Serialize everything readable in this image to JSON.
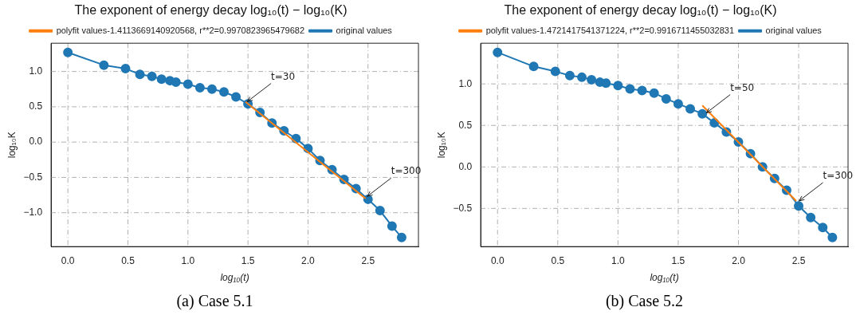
{
  "chart_data": [
    {
      "type": "line",
      "title": "The exponent of energy decay log₁₀(t) − log₁₀(K)",
      "xlabel": "log₁₀(t)",
      "ylabel": "log₁₀K",
      "xlim": [
        -0.14,
        2.92
      ],
      "ylim": [
        -1.48,
        1.4
      ],
      "xticks": [
        {
          "value": 0,
          "label": "0.0"
        },
        {
          "value": 0.5,
          "label": "0.5"
        },
        {
          "value": 1,
          "label": "1.0"
        },
        {
          "value": 1.5,
          "label": "1.5"
        },
        {
          "value": 2,
          "label": "2.0"
        },
        {
          "value": 2.5,
          "label": "2.5"
        }
      ],
      "yticks": [
        {
          "value": -1,
          "label": "−1.0"
        },
        {
          "value": -0.5,
          "label": "−0.5"
        },
        {
          "value": 0,
          "label": "0.0"
        },
        {
          "value": 0.5,
          "label": "0.5"
        },
        {
          "value": 1,
          "label": "1.0"
        }
      ],
      "grid": true,
      "legend": "top",
      "series": [
        {
          "name": "original values",
          "color": "#1f77b4",
          "marker": "circle",
          "x": [
            0,
            0.3,
            0.48,
            0.6,
            0.7,
            0.78,
            0.85,
            0.9,
            1.0,
            1.1,
            1.2,
            1.3,
            1.4,
            1.5,
            1.6,
            1.7,
            1.8,
            1.9,
            2.0,
            2.1,
            2.2,
            2.3,
            2.4,
            2.5,
            2.6,
            2.7,
            2.78
          ],
          "values": [
            1.27,
            1.09,
            1.04,
            0.96,
            0.93,
            0.89,
            0.87,
            0.85,
            0.82,
            0.77,
            0.75,
            0.71,
            0.64,
            0.54,
            0.42,
            0.27,
            0.16,
            0.05,
            -0.09,
            -0.26,
            -0.39,
            -0.53,
            -0.66,
            -0.81,
            -0.97,
            -1.19,
            -1.35
          ]
        },
        {
          "name": "polyfit values-1.4113669140920568, r**2=0.9970823965479682",
          "color": "#ff7f0e",
          "marker": "none",
          "x": [
            1.48,
            2.48
          ],
          "values": [
            0.57,
            -0.8
          ]
        }
      ],
      "annotations": [
        {
          "text": "t=30",
          "x": 1.48,
          "y": 0.56
        },
        {
          "text": "t=300",
          "x": 2.48,
          "y": -0.78
        },
        "(a) Case 5.1"
      ]
    },
    {
      "type": "line",
      "title": "The exponent of energy decay log₁₀(t) − log₁₀(K)",
      "xlabel": "log₁₀(t)",
      "ylabel": "log₁₀K",
      "xlim": [
        -0.14,
        2.91
      ],
      "ylim": [
        -0.96,
        1.49
      ],
      "xticks": [
        {
          "value": 0,
          "label": "0.0"
        },
        {
          "value": 0.5,
          "label": "0.5"
        },
        {
          "value": 1,
          "label": "1.0"
        },
        {
          "value": 1.5,
          "label": "1.5"
        },
        {
          "value": 2,
          "label": "2.0"
        },
        {
          "value": 2.5,
          "label": "2.5"
        }
      ],
      "yticks": [
        {
          "value": -0.5,
          "label": "−0.5"
        },
        {
          "value": 0,
          "label": "0.0"
        },
        {
          "value": 0.5,
          "label": "0.5"
        },
        {
          "value": 1,
          "label": "1.0"
        }
      ],
      "grid": true,
      "legend": "top",
      "series": [
        {
          "name": "original values",
          "color": "#1f77b4",
          "marker": "circle",
          "x": [
            0,
            0.3,
            0.48,
            0.6,
            0.7,
            0.78,
            0.85,
            0.9,
            1.0,
            1.1,
            1.2,
            1.3,
            1.4,
            1.5,
            1.6,
            1.7,
            1.8,
            1.9,
            2.0,
            2.1,
            2.2,
            2.3,
            2.4,
            2.5,
            2.6,
            2.7,
            2.78
          ],
          "values": [
            1.38,
            1.21,
            1.15,
            1.1,
            1.08,
            1.05,
            1.02,
            1.01,
            0.98,
            0.94,
            0.92,
            0.89,
            0.82,
            0.76,
            0.7,
            0.64,
            0.53,
            0.42,
            0.3,
            0.16,
            0.0,
            -0.14,
            -0.28,
            -0.47,
            -0.61,
            -0.73,
            -0.85
          ]
        },
        {
          "name": "polyfit values-1.4721417541371224, r**2=0.9916711455032831",
          "color": "#ff7f0e",
          "marker": "none",
          "x": [
            1.7,
            2.48
          ],
          "values": [
            0.74,
            -0.41
          ]
        }
      ],
      "annotations": [
        {
          "text": "t=50",
          "x": 1.72,
          "y": 0.64
        },
        {
          "text": "t=300",
          "x": 2.49,
          "y": -0.42
        },
        "(b) Case 5.2"
      ]
    }
  ]
}
